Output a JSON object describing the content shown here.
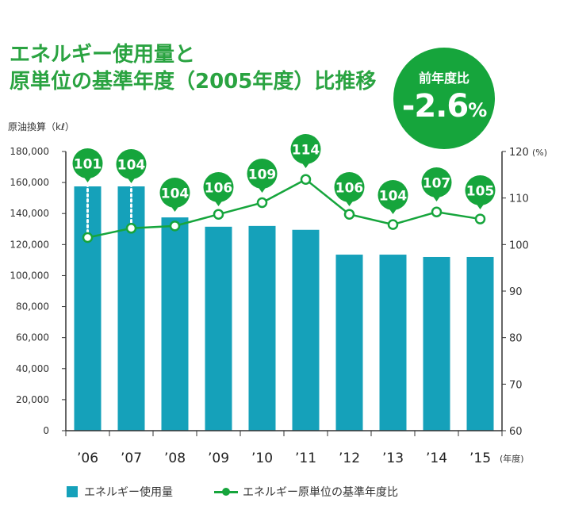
{
  "header": {
    "title_line1": "エネルギー使用量と",
    "title_line2": "原単位の基準年度（2005年度）比推移"
  },
  "badge": {
    "label": "前年度比",
    "value": "-2.6",
    "unit": "%"
  },
  "colors": {
    "bar": "#15a1ba",
    "line": "#16a53c",
    "title": "#2aa341"
  },
  "chart_data": {
    "type": "bar",
    "title": "エネルギー使用量と原単位の基準年度（2005年度）比推移",
    "categories": [
      "’06",
      "’07",
      "’08",
      "’09",
      "’10",
      "’11",
      "’12",
      "’13",
      "’14",
      "’15"
    ],
    "x_unit": "(年度)",
    "left_axis": {
      "label": "原油換算（kℓ）",
      "min": 0,
      "max": 180000,
      "ticks": [
        "0",
        "20,000",
        "40,000",
        "60,000",
        "80,000",
        "100,000",
        "120,000",
        "140,000",
        "160,000",
        "180,000"
      ],
      "tick_values": [
        0,
        20000,
        40000,
        60000,
        80000,
        100000,
        120000,
        140000,
        160000,
        180000
      ]
    },
    "right_axis": {
      "unit": "(%)",
      "min": 60,
      "max": 120,
      "ticks": [
        "60",
        "70",
        "80",
        "90",
        "100",
        "110",
        "120"
      ],
      "tick_values": [
        60,
        70,
        80,
        90,
        100,
        110,
        120
      ]
    },
    "series": [
      {
        "name": "エネルギー使用量",
        "type": "bar",
        "axis": "left",
        "values": [
          157500,
          157500,
          137500,
          131500,
          132000,
          129500,
          113500,
          113500,
          112000,
          112000
        ]
      },
      {
        "name": "エネルギー原単位の基準年度比",
        "type": "line",
        "axis": "right",
        "values": [
          101.5,
          103.5,
          104,
          106.5,
          109,
          114,
          106.5,
          104.3,
          107,
          105.5
        ],
        "labels": [
          "101",
          "104",
          "104",
          "106",
          "109",
          "114",
          "106",
          "104",
          "107",
          "105"
        ]
      }
    ],
    "grid": false,
    "legend_position": "bottom"
  }
}
